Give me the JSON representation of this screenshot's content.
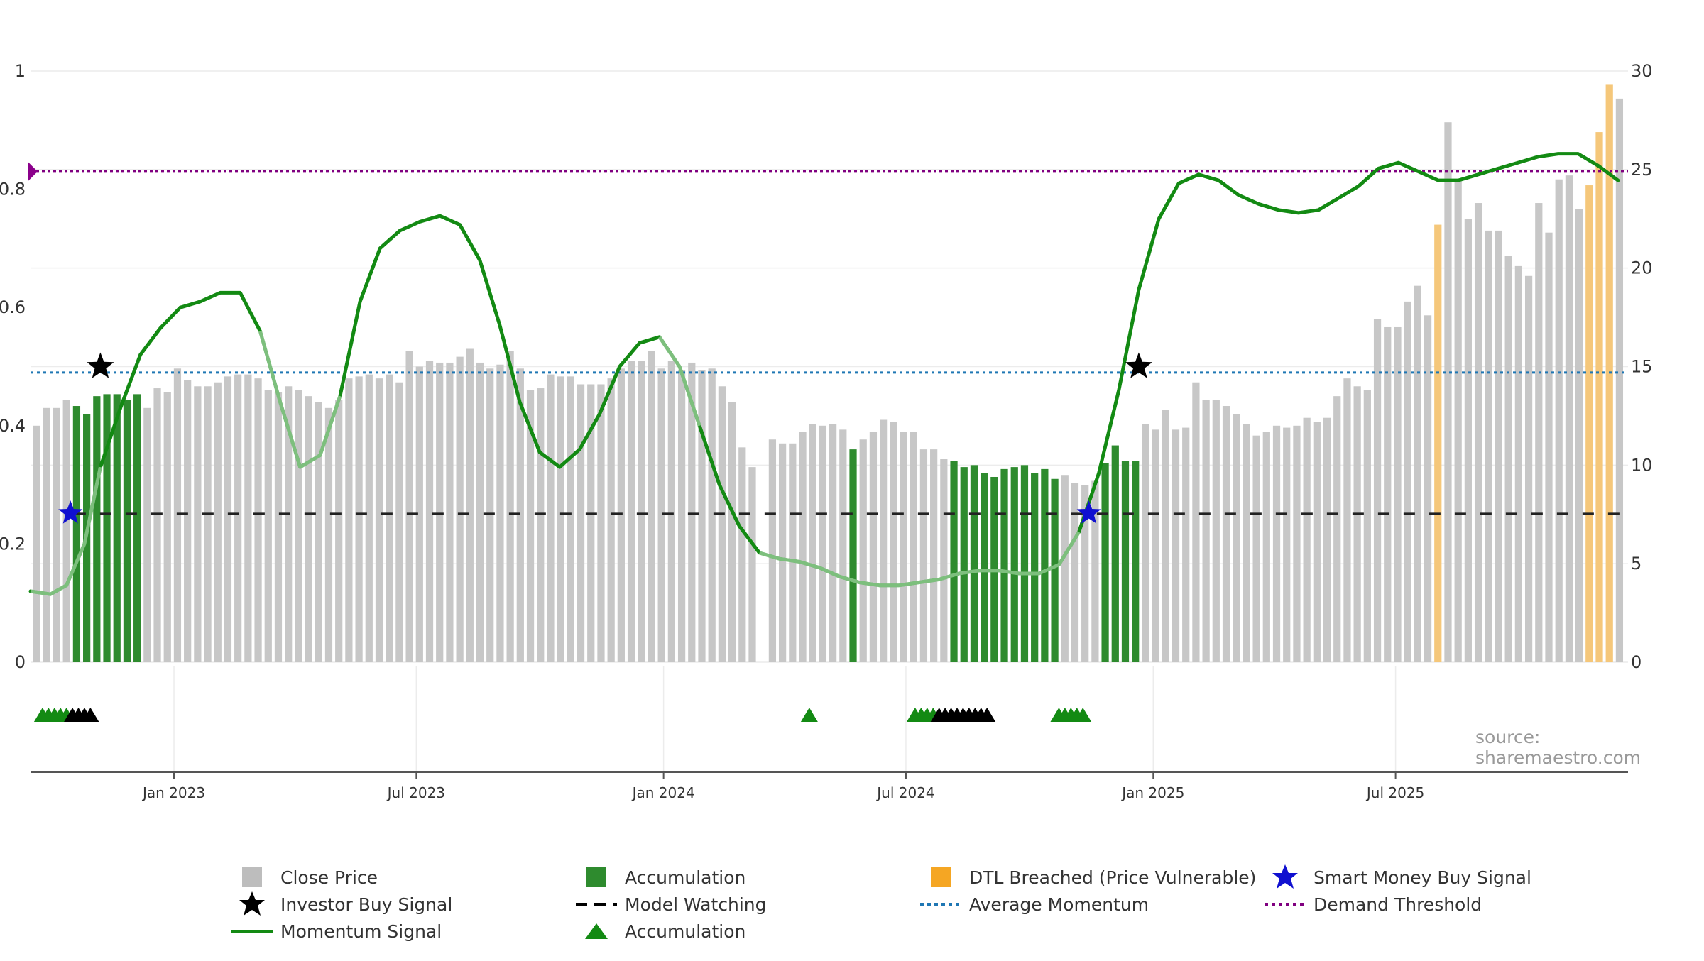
{
  "chart_data": {
    "type": "bar",
    "source": "source: sharemaestro.com",
    "left_axis": {
      "ticks": [
        "0",
        "0.2",
        "0.4",
        "0.6",
        "0.8",
        "1"
      ],
      "range": [
        0,
        1
      ]
    },
    "right_axis": {
      "ticks": [
        "0",
        "5",
        "10",
        "15",
        "20",
        "25",
        "30"
      ],
      "range": [
        0,
        30
      ]
    },
    "x_axis": {
      "ticks": [
        "Jan 2023",
        "Jul 2023",
        "Jan 2024",
        "Jul 2024",
        "Jan 2025",
        "Jul 2025"
      ]
    },
    "legend": {
      "close_price": "Close Price",
      "investor_buy": "Investor Buy Signal",
      "momentum": "Momentum Signal",
      "accumulation_bar": "Accumulation",
      "model_watching": "Model Watching",
      "accumulation_marker": "Accumulation",
      "dtl_breached": "DTL Breached (Price Vulnerable)",
      "average_momentum": "Average Momentum",
      "smart_money": "Smart Money Buy Signal",
      "demand_threshold": "Demand Threshold"
    },
    "colors": {
      "price": "#c7c7c7",
      "accumulation": "#2e8b2e",
      "dtl": "#f5c77a",
      "momentum": "#138a13",
      "average": "#1f77b4",
      "demand": "#800080",
      "smart_money": "#1010d0",
      "investor": "#000000"
    },
    "levels": {
      "demand_threshold": 0.83,
      "average_momentum": 0.49,
      "model_watching": 0.251
    },
    "start_month": 2022.75,
    "week_step": 0.01923,
    "price": [
      12.0,
      12.9,
      12.9,
      13.3,
      13.0,
      12.6,
      13.5,
      13.6,
      13.6,
      13.3,
      13.6,
      12.9,
      13.9,
      13.7,
      14.9,
      14.3,
      14.0,
      14.0,
      14.2,
      14.5,
      14.6,
      14.6,
      14.4,
      13.8,
      13.7,
      14.0,
      13.8,
      13.5,
      13.2,
      12.9,
      13.3,
      14.4,
      14.5,
      14.6,
      14.4,
      14.6,
      14.2,
      15.8,
      15.0,
      15.3,
      15.2,
      15.2,
      15.5,
      15.9,
      15.2,
      14.9,
      15.1,
      15.8,
      14.9,
      13.8,
      13.9,
      14.6,
      14.5,
      14.5,
      14.1,
      14.1,
      14.1,
      14.4,
      14.9,
      15.3,
      15.3,
      15.8,
      14.9,
      15.3,
      14.8,
      15.2,
      14.8,
      14.9,
      14.0,
      13.2,
      10.9,
      9.9,
      0,
      11.3,
      11.1,
      11.1,
      11.7,
      12.1,
      12.0,
      12.1,
      11.8,
      10.8,
      11.3,
      11.7,
      12.3,
      12.2,
      11.7,
      11.7,
      10.8,
      10.8,
      10.3,
      10.2,
      9.9,
      10.0,
      9.6,
      9.4,
      9.8,
      9.9,
      10.0,
      9.6,
      9.8,
      9.3,
      9.5,
      9.1,
      9.0,
      9.2,
      10.1,
      11.0,
      10.2,
      10.2,
      12.1,
      11.8,
      12.8,
      11.8,
      11.9,
      14.2,
      13.3,
      13.3,
      13.0,
      12.6,
      12.1,
      11.5,
      11.7,
      12.0,
      11.9,
      12.0,
      12.4,
      12.2,
      12.4,
      13.5,
      14.4,
      14.0,
      13.8,
      17.4,
      17.0,
      17.0,
      18.3,
      19.1,
      17.6,
      22.2,
      27.4,
      24.5,
      22.5,
      23.3,
      21.9,
      21.9,
      20.6,
      20.1,
      19.6,
      23.3,
      21.8,
      24.5,
      24.7,
      23.0,
      24.2,
      26.9,
      29.3,
      28.6
    ],
    "dtl_week_indices": [
      139,
      154,
      155,
      156
    ],
    "accumulation_periods": [
      [
        4,
        10
      ],
      [
        81,
        81
      ],
      [
        91,
        101
      ],
      [
        106,
        109
      ]
    ],
    "momentum": [
      {
        "x": 2022.75,
        "y": 0.12
      },
      {
        "x": 2022.85,
        "y": 0.115
      },
      {
        "x": 2022.93,
        "y": 0.13
      },
      {
        "x": 2023.02,
        "y": 0.2
      },
      {
        "x": 2023.1,
        "y": 0.33
      },
      {
        "x": 2023.2,
        "y": 0.43
      },
      {
        "x": 2023.3,
        "y": 0.52
      },
      {
        "x": 2023.4,
        "y": 0.565
      },
      {
        "x": 2023.5,
        "y": 0.6
      },
      {
        "x": 2023.6,
        "y": 0.61
      },
      {
        "x": 2023.7,
        "y": 0.625
      },
      {
        "x": 2023.8,
        "y": 0.625
      },
      {
        "x": 2023.9,
        "y": 0.56
      },
      {
        "x": 2024.0,
        "y": 0.44
      },
      {
        "x": 2024.1,
        "y": 0.33
      },
      {
        "x": 2024.2,
        "y": 0.35
      },
      {
        "x": 2024.3,
        "y": 0.45
      },
      {
        "x": 2024.4,
        "y": 0.61
      },
      {
        "x": 2024.5,
        "y": 0.7
      },
      {
        "x": 2024.6,
        "y": 0.73
      },
      {
        "x": 2024.7,
        "y": 0.745
      },
      {
        "x": 2024.8,
        "y": 0.755
      },
      {
        "x": 2024.9,
        "y": 0.74
      },
      {
        "x": 2025.0,
        "y": 0.68
      },
      {
        "x": 2025.1,
        "y": 0.57
      },
      {
        "x": 2025.2,
        "y": 0.44
      },
      {
        "x": 2025.3,
        "y": 0.355
      },
      {
        "x": 2025.4,
        "y": 0.33
      },
      {
        "x": 2025.5,
        "y": 0.36
      },
      {
        "x": 2025.6,
        "y": 0.42
      },
      {
        "x": 2025.7,
        "y": 0.5
      },
      {
        "x": 2025.8,
        "y": 0.54
      },
      {
        "x": 2025.9,
        "y": 0.55
      },
      {
        "x": 2026.0,
        "y": 0.5
      },
      {
        "x": 2026.1,
        "y": 0.4
      },
      {
        "x": 2026.2,
        "y": 0.3
      },
      {
        "x": 2026.3,
        "y": 0.23
      },
      {
        "x": 2026.4,
        "y": 0.185
      },
      {
        "x": 2026.5,
        "y": 0.175
      },
      {
        "x": 2026.6,
        "y": 0.17
      },
      {
        "x": 2026.7,
        "y": 0.16
      },
      {
        "x": 2026.8,
        "y": 0.145
      },
      {
        "x": 2026.9,
        "y": 0.135
      },
      {
        "x": 2027.0,
        "y": 0.13
      },
      {
        "x": 2027.1,
        "y": 0.13
      },
      {
        "x": 2027.2,
        "y": 0.135
      },
      {
        "x": 2027.3,
        "y": 0.14
      },
      {
        "x": 2027.4,
        "y": 0.15
      },
      {
        "x": 2027.5,
        "y": 0.155
      },
      {
        "x": 2027.6,
        "y": 0.155
      },
      {
        "x": 2027.7,
        "y": 0.15
      },
      {
        "x": 2027.8,
        "y": 0.15
      },
      {
        "x": 2027.9,
        "y": 0.165
      },
      {
        "x": 2028.0,
        "y": 0.22
      },
      {
        "x": 2028.1,
        "y": 0.32
      },
      {
        "x": 2028.2,
        "y": 0.46
      },
      {
        "x": 2028.3,
        "y": 0.63
      },
      {
        "x": 2028.4,
        "y": 0.75
      },
      {
        "x": 2028.5,
        "y": 0.81
      },
      {
        "x": 2028.6,
        "y": 0.825
      },
      {
        "x": 2028.7,
        "y": 0.815
      },
      {
        "x": 2028.8,
        "y": 0.79
      },
      {
        "x": 2028.9,
        "y": 0.775
      },
      {
        "x": 2029.0,
        "y": 0.765
      },
      {
        "x": 2029.1,
        "y": 0.76
      },
      {
        "x": 2029.2,
        "y": 0.765
      },
      {
        "x": 2029.3,
        "y": 0.785
      },
      {
        "x": 2029.4,
        "y": 0.805
      },
      {
        "x": 2029.5,
        "y": 0.835
      },
      {
        "x": 2029.6,
        "y": 0.845
      },
      {
        "x": 2029.7,
        "y": 0.83
      },
      {
        "x": 2029.8,
        "y": 0.815
      },
      {
        "x": 2029.9,
        "y": 0.815
      },
      {
        "x": 2030.0,
        "y": 0.825
      },
      {
        "x": 2030.1,
        "y": 0.835
      },
      {
        "x": 2030.2,
        "y": 0.845
      },
      {
        "x": 2030.3,
        "y": 0.855
      },
      {
        "x": 2030.4,
        "y": 0.86
      },
      {
        "x": 2030.5,
        "y": 0.86
      },
      {
        "x": 2030.6,
        "y": 0.84
      },
      {
        "x": 2030.7,
        "y": 0.815
      }
    ],
    "momentum_dim_ranges": [
      [
        2022.75,
        2023.1
      ],
      [
        2023.9,
        2024.3
      ],
      [
        2025.9,
        2026.1
      ],
      [
        2026.4,
        2028.05
      ],
      [
        2030.62,
        2030.72
      ]
    ],
    "investor_buy_signals": [
      {
        "x": 2023.1,
        "y": 0.5
      },
      {
        "x": 2028.3,
        "y": 0.5
      }
    ],
    "smart_money_signals": [
      {
        "x": 2022.95,
        "y": 0.252
      },
      {
        "x": 2028.05,
        "y": 0.252
      }
    ],
    "accumulation_markers": {
      "green": [
        2022.81,
        2022.84,
        2022.87,
        2022.9,
        2022.93,
        2026.65,
        2027.18,
        2027.21,
        2027.24,
        2027.27,
        2027.9,
        2027.93,
        2027.96,
        2027.99,
        2028.02
      ],
      "black": [
        2022.96,
        2022.99,
        2023.02,
        2023.05,
        2027.3,
        2027.33,
        2027.36,
        2027.39,
        2027.42,
        2027.45,
        2027.48,
        2027.51,
        2027.54
      ]
    }
  }
}
